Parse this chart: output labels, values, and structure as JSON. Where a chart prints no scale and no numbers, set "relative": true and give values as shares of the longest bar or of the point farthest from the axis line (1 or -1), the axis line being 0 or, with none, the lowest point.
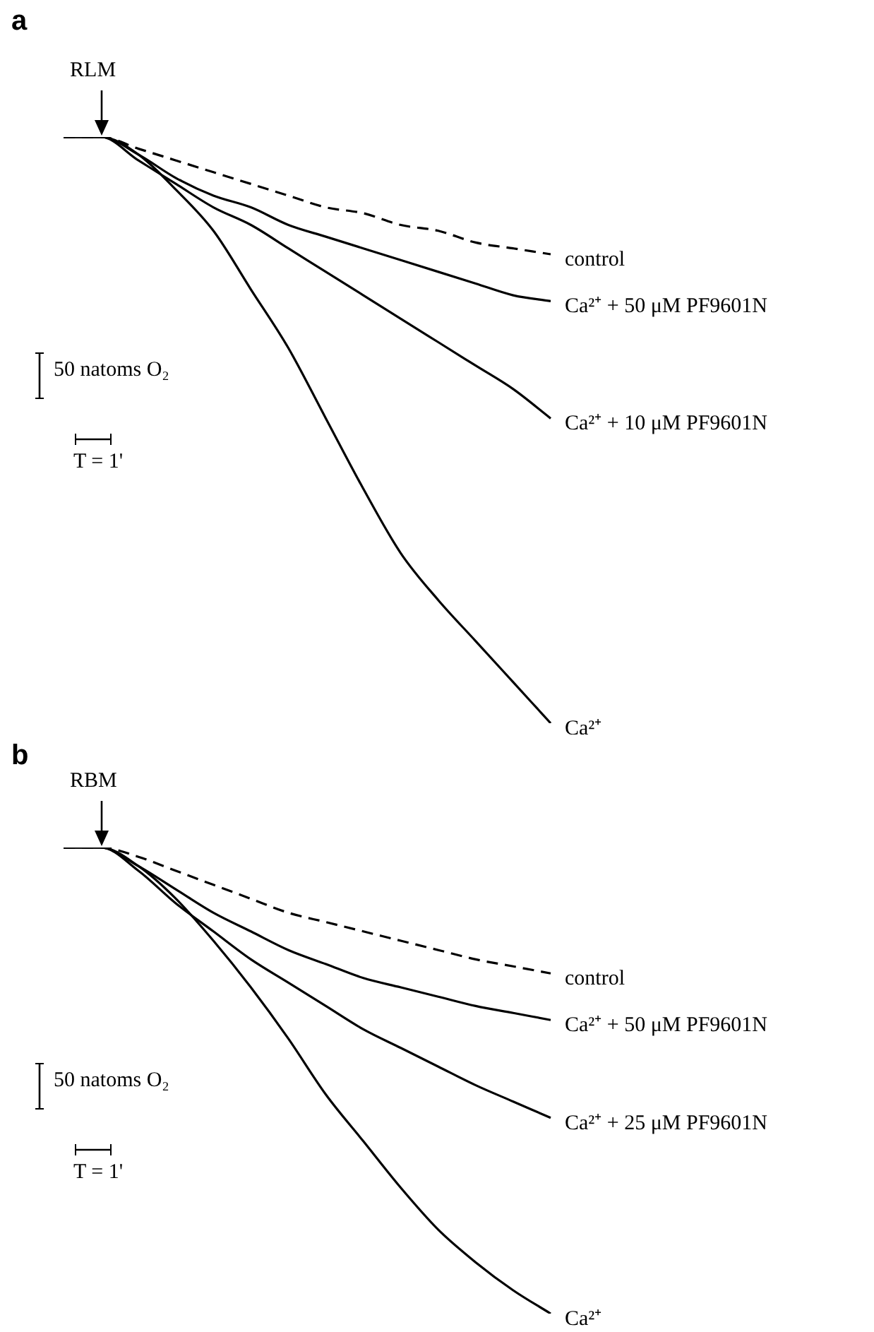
{
  "chart_data": [
    {
      "type": "line",
      "title": "a",
      "relative": true,
      "legend": false,
      "annotations": [
        "RLM",
        "50 natoms O₂",
        "T = 1'"
      ],
      "categories": [
        null,
        null,
        null,
        null,
        null,
        null,
        null,
        null,
        null,
        null,
        null,
        null,
        null,
        null
      ],
      "series": [
        {
          "name": "control",
          "color": "#000000",
          "line_style": "dashed",
          "values": [
            1,
            1,
            0.98,
            0.96,
            0.94,
            0.92,
            0.9,
            0.88,
            0.87,
            0.85,
            0.84,
            0.82,
            0.81,
            0.8
          ]
        },
        {
          "name": "Ca²⁺ + 50 μM PF9601N",
          "color": "#000000",
          "values": [
            1,
            1,
            0.97,
            0.93,
            0.9,
            0.88,
            0.85,
            0.83,
            0.81,
            0.79,
            0.77,
            0.75,
            0.73,
            0.72
          ]
        },
        {
          "name": "Ca²⁺ + 10 μM PF9601N",
          "color": "#000000",
          "values": [
            1,
            1,
            0.96,
            0.92,
            0.88,
            0.85,
            0.81,
            0.77,
            0.73,
            0.69,
            0.65,
            0.61,
            0.57,
            0.52
          ]
        },
        {
          "name": "Ca²⁺",
          "color": "#000000",
          "values": [
            1,
            1,
            0.97,
            0.91,
            0.84,
            0.74,
            0.64,
            0.52,
            0.4,
            0.29,
            0.21,
            0.14,
            0.07,
            0
          ]
        }
      ]
    },
    {
      "type": "line",
      "title": "b",
      "relative": true,
      "legend": false,
      "annotations": [
        "RBM",
        "50 natoms O₂",
        "T = 1'"
      ],
      "categories": [
        null,
        null,
        null,
        null,
        null,
        null,
        null,
        null,
        null,
        null,
        null,
        null,
        null,
        null
      ],
      "series": [
        {
          "name": "control",
          "color": "#000000",
          "line_style": "dashed",
          "values": [
            1,
            1,
            0.98,
            0.95,
            0.92,
            0.89,
            0.86,
            0.84,
            0.82,
            0.8,
            0.78,
            0.76,
            0.745,
            0.73
          ]
        },
        {
          "name": "Ca²⁺ + 50 μM PF9601N",
          "color": "#000000",
          "values": [
            1,
            1,
            0.96,
            0.91,
            0.86,
            0.82,
            0.78,
            0.75,
            0.72,
            0.7,
            0.68,
            0.66,
            0.645,
            0.63
          ]
        },
        {
          "name": "Ca²⁺ + 25 μM PF9601N",
          "color": "#000000",
          "values": [
            1,
            1,
            0.95,
            0.88,
            0.82,
            0.76,
            0.71,
            0.66,
            0.61,
            0.57,
            0.53,
            0.49,
            0.455,
            0.42
          ]
        },
        {
          "name": "Ca²⁺",
          "color": "#000000",
          "values": [
            1,
            1,
            0.96,
            0.89,
            0.8,
            0.7,
            0.59,
            0.47,
            0.37,
            0.27,
            0.18,
            0.11,
            0.05,
            0
          ]
        }
      ]
    }
  ]
}
